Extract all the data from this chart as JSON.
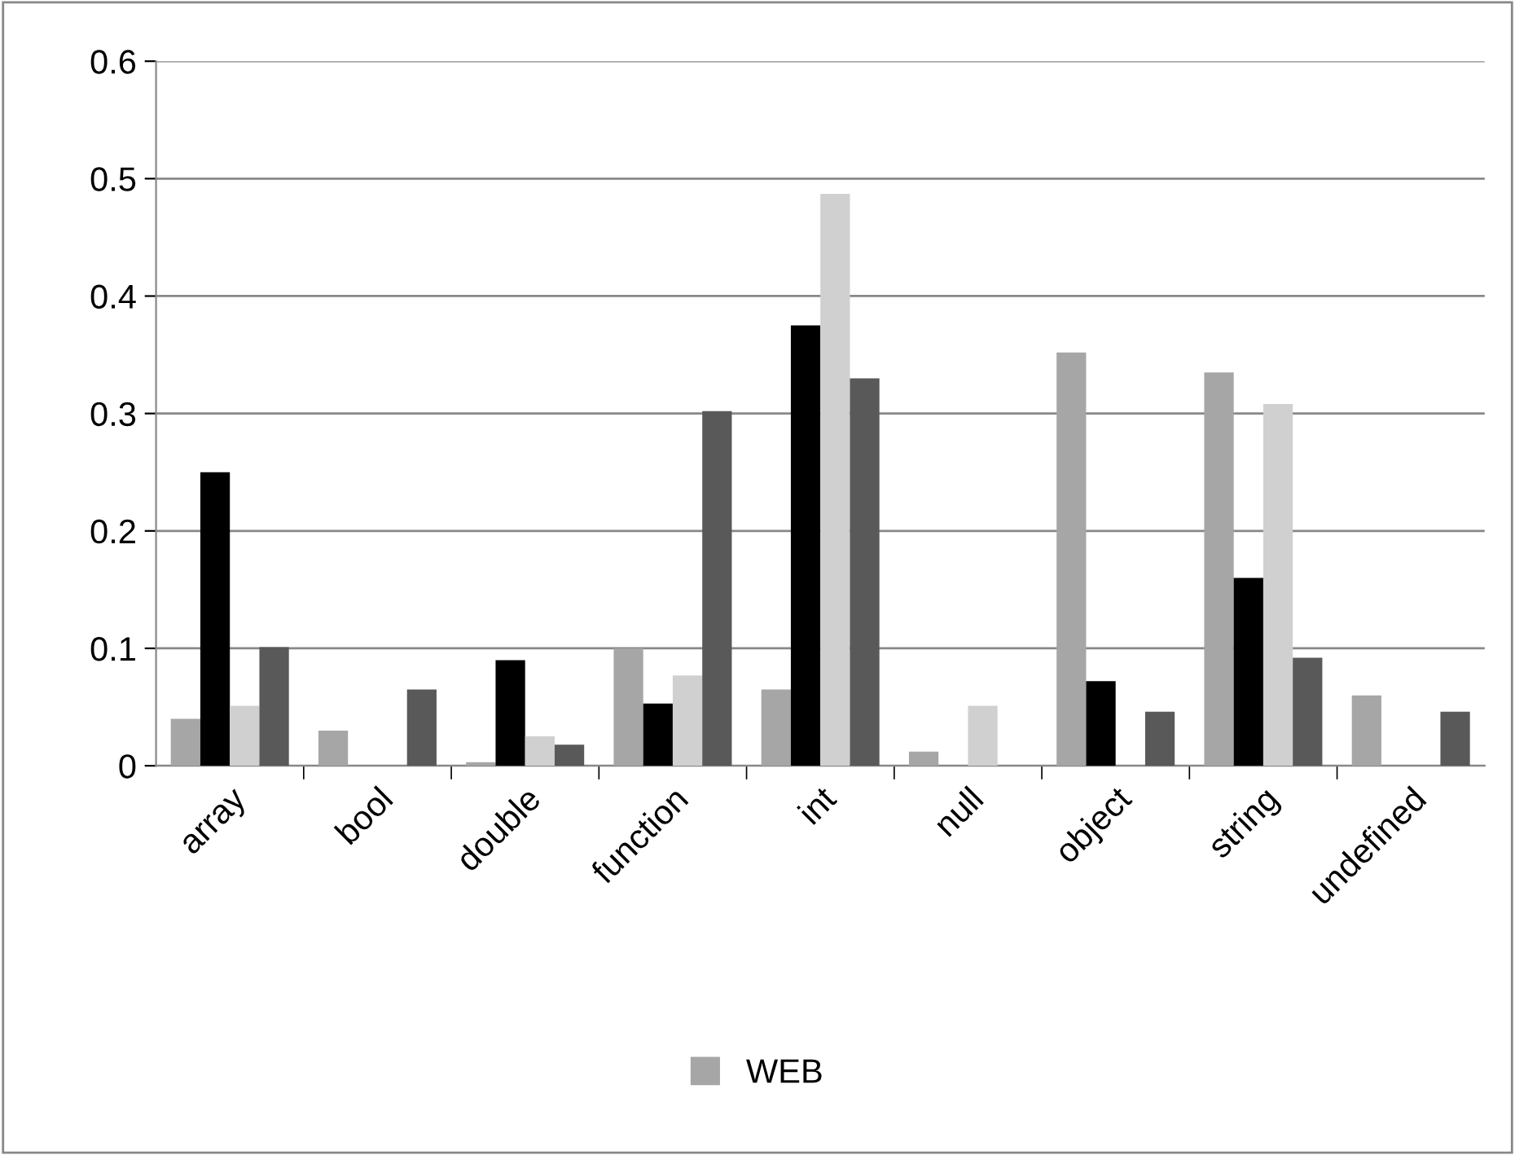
{
  "chart_data": {
    "type": "bar",
    "categories": [
      "array",
      "bool",
      "double",
      "function",
      "int",
      "null",
      "object",
      "string",
      "undefined"
    ],
    "series": [
      {
        "name": "WEB",
        "color": "#a6a6a6",
        "values": [
          0.04,
          0.03,
          0.003,
          0.1,
          0.065,
          0.012,
          0.352,
          0.335,
          0.06
        ]
      },
      {
        "color": "#000000",
        "values": [
          0.25,
          0,
          0.09,
          0.053,
          0.375,
          0,
          0.072,
          0.16,
          0
        ]
      },
      {
        "color": "#d0d0d0",
        "values": [
          0.051,
          0,
          0.025,
          0.077,
          0.487,
          0.051,
          0,
          0.308,
          0
        ]
      },
      {
        "color": "#595959",
        "values": [
          0.101,
          0.065,
          0.018,
          0.302,
          0.33,
          0,
          0.046,
          0.092,
          0.046
        ]
      }
    ],
    "ylim": [
      0,
      0.6
    ],
    "yticks": [
      0,
      0.1,
      0.2,
      0.3,
      0.4,
      0.5,
      0.6
    ],
    "grid": "y",
    "legend": "bottom"
  }
}
